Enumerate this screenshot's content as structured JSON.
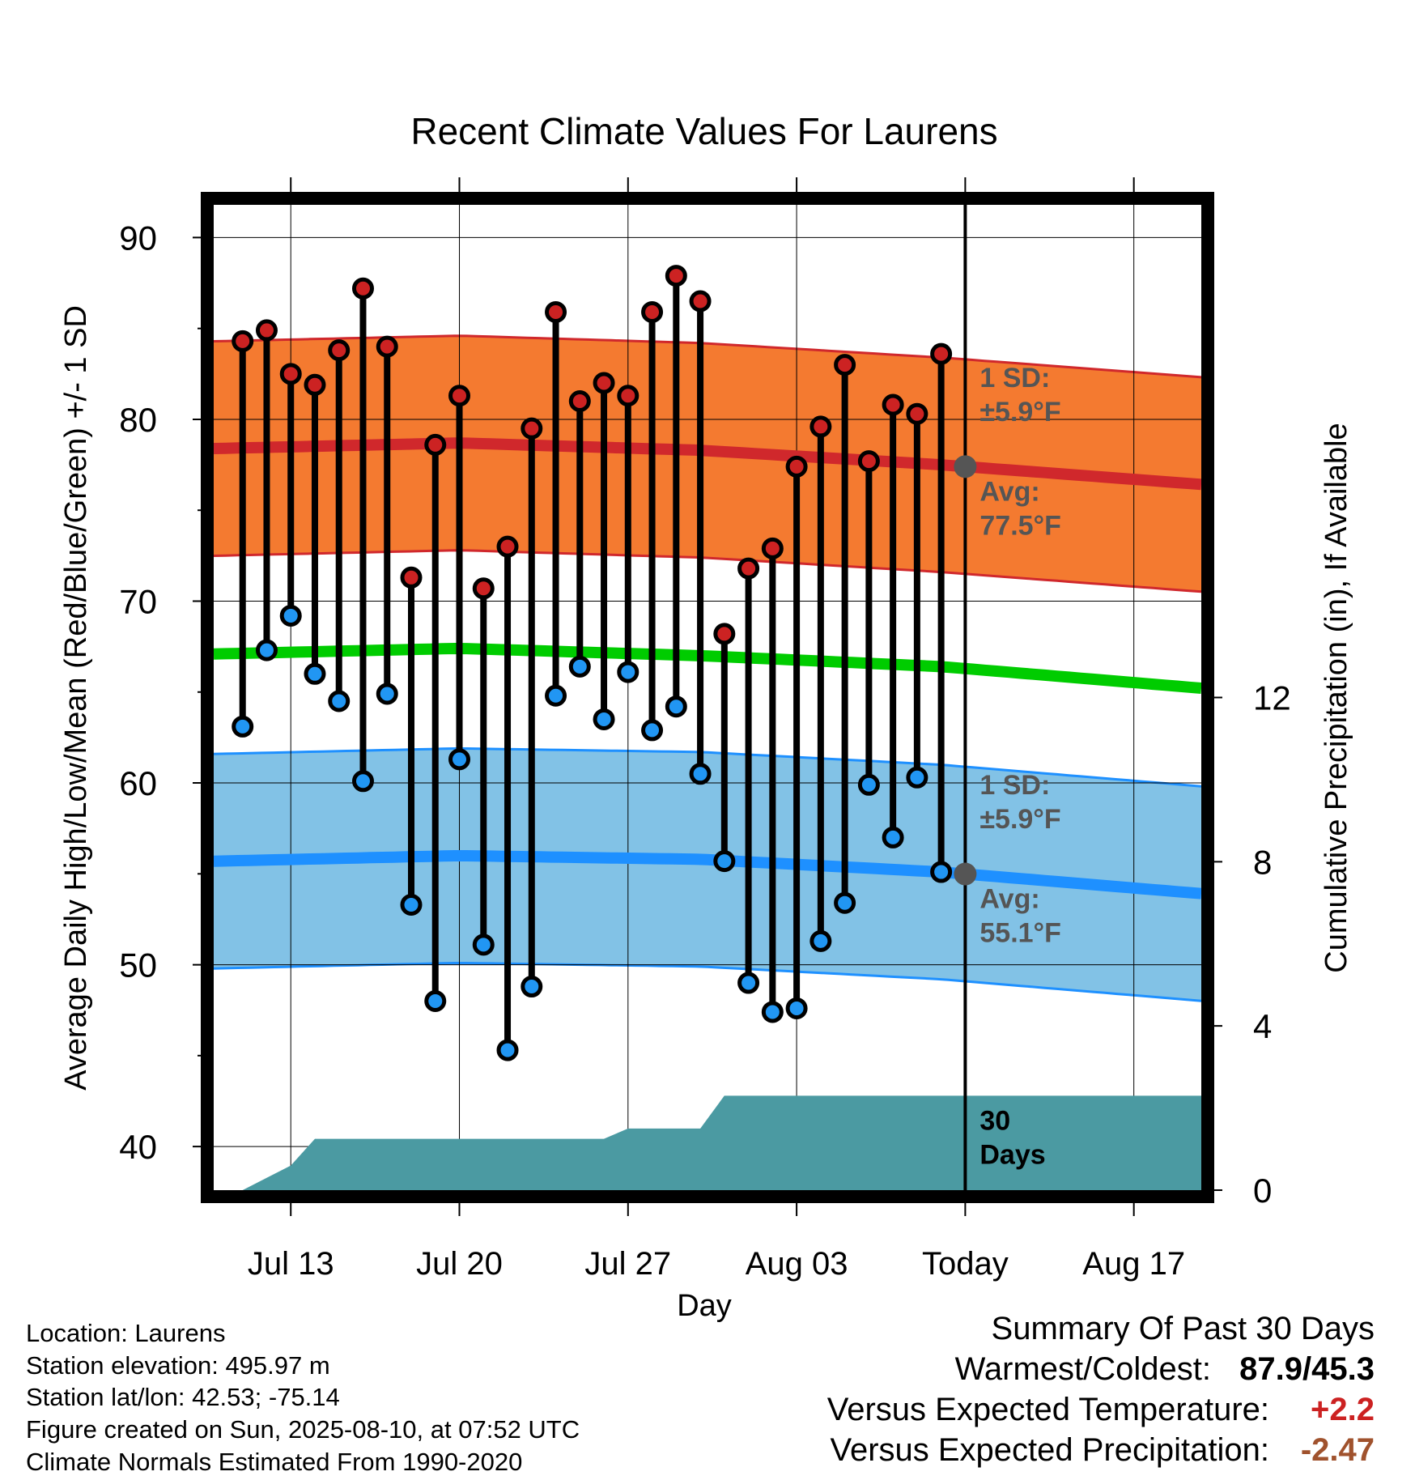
{
  "chart_data": {
    "type": "line",
    "title": "Recent Climate Values For Laurens",
    "xlabel": "Day",
    "ylabel_left": "Average Daily High/Low/Mean (Red/Blue/Green) +/- 1 SD",
    "ylabel_right": "Cumulative Precipitation (in), If Available",
    "x_ticks": [
      {
        "day": 13,
        "label": "Jul 13"
      },
      {
        "day": 20,
        "label": "Jul 20"
      },
      {
        "day": 27,
        "label": "Jul 27"
      },
      {
        "day": 34,
        "label": "Aug 03"
      },
      {
        "day": 41,
        "label": "Today"
      },
      {
        "day": 48,
        "label": "Aug 17"
      }
    ],
    "xlim": [
      9.8,
      50.8
    ],
    "ylim": [
      37.6,
      91.8
    ],
    "y_ticks": [
      40,
      50,
      60,
      70,
      80,
      90
    ],
    "y2_ticks": [
      0,
      4,
      8,
      12
    ],
    "y2lim": [
      0,
      24
    ],
    "today_day": 41,
    "daily": {
      "day": [
        11,
        12,
        13,
        14,
        15,
        16,
        17,
        18,
        19,
        20,
        21,
        22,
        23,
        24,
        25,
        26,
        27,
        28,
        29,
        30,
        31,
        32,
        33,
        34,
        35,
        36,
        37,
        38,
        39,
        40
      ],
      "high": [
        84.3,
        84.9,
        82.5,
        81.9,
        83.8,
        87.2,
        84.0,
        71.3,
        78.6,
        81.3,
        70.7,
        73.0,
        79.5,
        85.9,
        81.0,
        82.0,
        81.3,
        85.9,
        87.9,
        86.5,
        68.2,
        71.8,
        72.9,
        77.4,
        79.6,
        83.0,
        77.7,
        80.8,
        80.3,
        83.6
      ],
      "low": [
        63.1,
        67.3,
        69.2,
        66.0,
        64.5,
        60.1,
        64.9,
        53.3,
        48.0,
        61.3,
        51.1,
        45.3,
        48.8,
        64.8,
        66.4,
        63.5,
        66.1,
        62.9,
        64.2,
        60.5,
        55.7,
        49.0,
        47.4,
        47.6,
        51.3,
        53.4,
        59.9,
        57.0,
        60.3,
        55.1
      ]
    },
    "normal_high": {
      "day": [
        10,
        20,
        30,
        40,
        50
      ],
      "values": [
        78.4,
        78.7,
        78.3,
        77.5,
        76.5
      ]
    },
    "normal_mean": {
      "day": [
        10,
        20,
        30,
        40,
        50
      ],
      "values": [
        67.1,
        67.4,
        67.0,
        66.4,
        65.3
      ]
    },
    "normal_low": {
      "day": [
        10,
        20,
        30,
        40,
        50
      ],
      "values": [
        55.7,
        56.0,
        55.8,
        55.1,
        54.0
      ]
    },
    "sd_f": 5.9,
    "precip": {
      "day": [
        9.8,
        11,
        12,
        13,
        14,
        15,
        16,
        17,
        18,
        19,
        20,
        21,
        22,
        23,
        24,
        25,
        26,
        27,
        28,
        29,
        30,
        31,
        32,
        33,
        34,
        35,
        36,
        37,
        38,
        39,
        40,
        41,
        50.8
      ],
      "values": [
        0,
        0,
        0.3,
        0.6,
        1.25,
        1.25,
        1.25,
        1.25,
        1.25,
        1.25,
        1.25,
        1.25,
        1.25,
        1.25,
        1.25,
        1.25,
        1.25,
        1.5,
        1.5,
        1.5,
        1.5,
        2.3,
        2.3,
        2.3,
        2.3,
        2.3,
        2.3,
        2.3,
        2.3,
        2.3,
        2.3,
        2.3,
        2.3
      ]
    },
    "annotations": {
      "high_sd_l1": "1 SD:",
      "high_sd_l2": "±5.9°F",
      "high_avg_l1": "Avg:",
      "high_avg_l2": "77.5°F",
      "low_sd_l1": "1 SD:",
      "low_sd_l2": "±5.9°F",
      "low_avg_l1": "Avg:",
      "low_avg_l2": "55.1°F",
      "days_l1": "30",
      "days_l2": "Days"
    },
    "colors": {
      "high_band": "#f47a30",
      "high_line": "#d0282c",
      "mean_line": "#00cc00",
      "low_band": "#82c2e6",
      "low_line": "#1e90ff",
      "precip_fill": "#4b9aa2",
      "high_dot": "#cc2222",
      "low_dot": "#2196f3",
      "annotation": "#555555"
    }
  },
  "footer": {
    "location": "Location: Laurens",
    "elevation": "Station elevation: 495.97 m",
    "latlon": "Station lat/lon: 42.53; -75.14",
    "created": "Figure created on Sun, 2025-08-10, at 07:52 UTC",
    "normals": "Climate Normals Estimated From 1990-2020"
  },
  "summary": {
    "title": "Summary Of Past 30 Days",
    "warm_cold_label": "Warmest/Coldest:",
    "warm_cold_value": "87.9/45.3",
    "temp_label": "Versus Expected Temperature:",
    "temp_value": "+2.2",
    "temp_color": "#cc2222",
    "precip_label": "Versus Expected Precipitation:",
    "precip_value": "-2.47",
    "precip_color": "#a0522d"
  }
}
